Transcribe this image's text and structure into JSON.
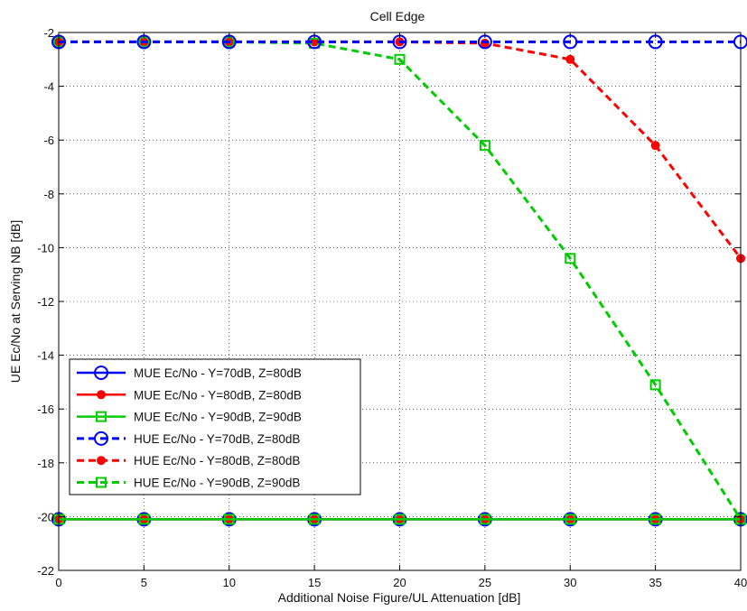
{
  "chart_data": {
    "type": "line",
    "title": "Cell Edge",
    "xlabel": "Additional Noise Figure/UL Attenuation [dB]",
    "ylabel": "UE Ec/No at Serving NB [dB]",
    "xlim": [
      0,
      40
    ],
    "ylim": [
      -22,
      -2
    ],
    "x_ticks": [
      0,
      5,
      10,
      15,
      20,
      25,
      30,
      35,
      40
    ],
    "y_ticks": [
      -22,
      -20,
      -18,
      -16,
      -14,
      -12,
      -10,
      -8,
      -6,
      -4,
      -2
    ],
    "grid": true,
    "legend_position": "lower-left",
    "x": [
      0,
      5,
      10,
      15,
      20,
      25,
      30,
      35,
      40
    ],
    "series": [
      {
        "name": "MUE Ec/No - Y=70dB, Z=80dB",
        "color": "#0000ff",
        "line_style": "solid",
        "marker": "circle",
        "values": [
          -20.1,
          -20.1,
          -20.1,
          -20.1,
          -20.1,
          -20.1,
          -20.1,
          -20.1,
          -20.1
        ]
      },
      {
        "name": "MUE Ec/No - Y=80dB, Z=80dB",
        "color": "#ff0000",
        "line_style": "solid",
        "marker": "dot",
        "values": [
          -20.1,
          -20.1,
          -20.1,
          -20.1,
          -20.1,
          -20.1,
          -20.1,
          -20.1,
          -20.1
        ]
      },
      {
        "name": "MUE Ec/No - Y=90dB, Z=90dB",
        "color": "#00cc00",
        "line_style": "solid",
        "marker": "square",
        "values": [
          -20.1,
          -20.1,
          -20.1,
          -20.1,
          -20.1,
          -20.1,
          -20.1,
          -20.1,
          -20.1
        ]
      },
      {
        "name": "HUE Ec/No - Y=70dB, Z=80dB",
        "color": "#0000ff",
        "line_style": "dashed",
        "marker": "circle",
        "values": [
          -2.35,
          -2.35,
          -2.35,
          -2.35,
          -2.35,
          -2.35,
          -2.35,
          -2.35,
          -2.35
        ]
      },
      {
        "name": "HUE Ec/No - Y=80dB, Z=80dB",
        "color": "#ff0000",
        "line_style": "dashed",
        "marker": "dot",
        "values": [
          -2.35,
          -2.35,
          -2.35,
          -2.35,
          -2.35,
          -2.4,
          -3.0,
          -6.2,
          -10.4
        ]
      },
      {
        "name": "HUE Ec/No - Y=90dB, Z=90dB",
        "color": "#00cc00",
        "line_style": "dashed",
        "marker": "square",
        "values": [
          -2.35,
          -2.35,
          -2.35,
          -2.4,
          -3.0,
          -6.2,
          -10.4,
          -15.1,
          -20.1
        ]
      }
    ]
  }
}
